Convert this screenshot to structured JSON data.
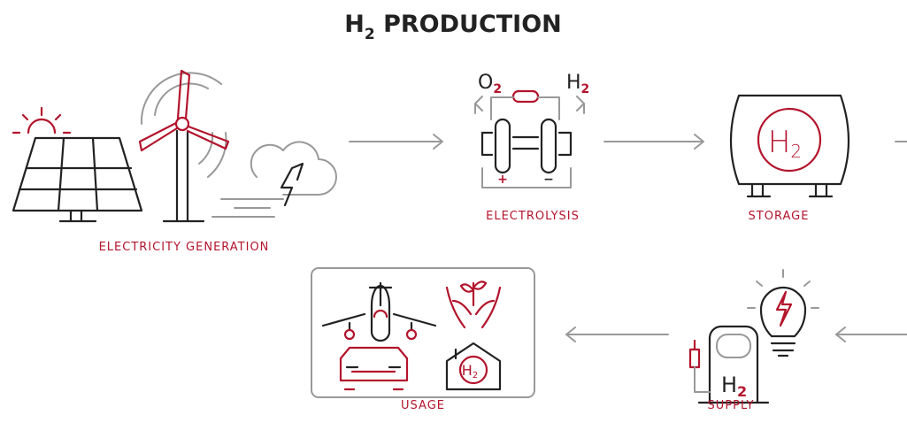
{
  "title": {
    "text": "H",
    "subscript": "2",
    "rest": " PRODUCTION"
  },
  "nodes": [
    {
      "label": "ELECTRICITY GENERATION"
    },
    {
      "label": "ELECTROLYSIS",
      "icon_left": {
        "text": "O",
        "subscript": "2"
      },
      "icon_right": {
        "text": "H",
        "subscript": "2"
      },
      "plus": "+",
      "minus": "−"
    },
    {
      "label": "STORAGE",
      "icon": {
        "text": "H",
        "subscript": "2"
      }
    },
    {
      "label": "USAGE",
      "icon": {
        "text": "H",
        "subscript": "2"
      }
    },
    {
      "label": "SUPPLY",
      "icon": {
        "text": "H",
        "subscript": "2"
      }
    }
  ]
}
